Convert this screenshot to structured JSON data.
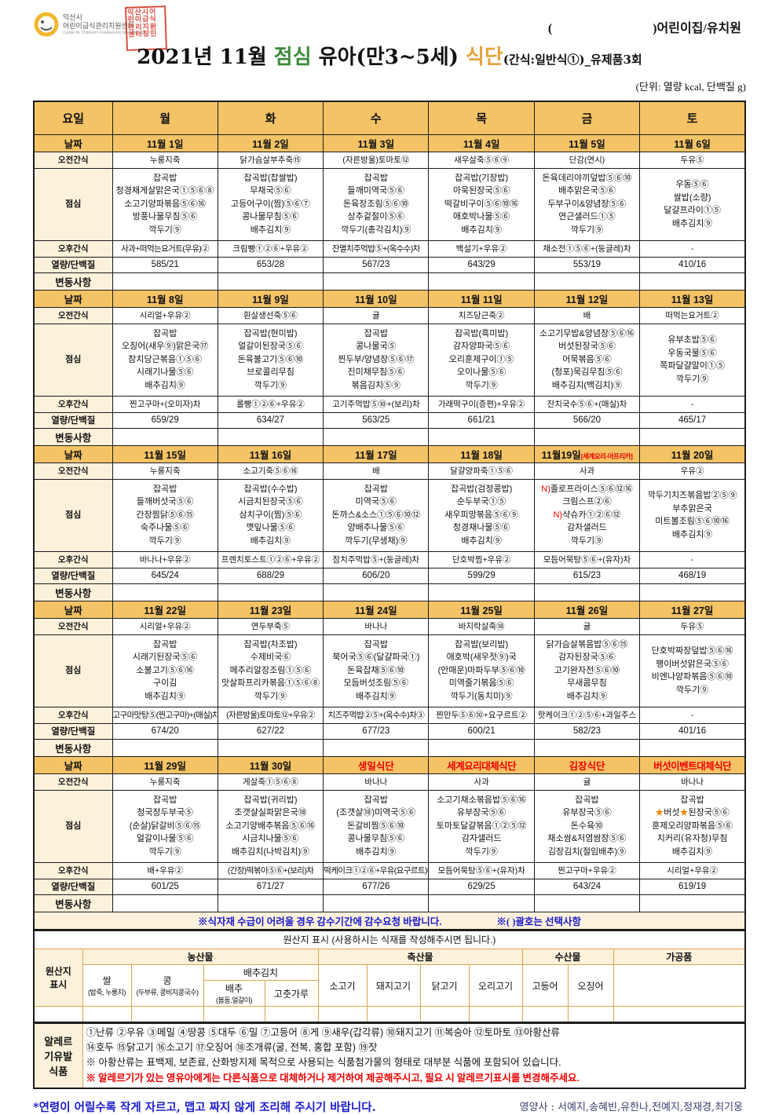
{
  "header": {
    "org_line1": "익산시",
    "org_line2": "어린이급식관리지원센터",
    "org_en": "Center for Children's Foodservice Management",
    "stamp_text": "익산시어린이급식관리지원센터장인",
    "facility_open": "(",
    "facility_close": ")어린이집/유치원",
    "title_prefix": "2021년 11월 ",
    "title_lunch": "점심",
    "title_mid": " 유아(만3~5세) ",
    "title_diet": "식단",
    "title_suffix": "(간식:일반식①)_유제품3회",
    "unit_note": "(단위: 열량 kcal, 단백질 g)"
  },
  "menu": {
    "corner_label": "요일",
    "days": [
      "월",
      "화",
      "수",
      "목",
      "금",
      "토"
    ],
    "row_labels": {
      "date": "날짜",
      "am_snack": "오전간식",
      "lunch": "점심",
      "pm_snack": "오후간식",
      "nutrition": "열량/단백질",
      "changes": "변동사항"
    },
    "note_left": "※식자재 수급이 어려울 경우 감수기간에 감수요청 바랍니다.",
    "note_right": "※( )괄호는 선택사항",
    "weeks": [
      {
        "dates": [
          "11월 1일",
          "11월 2일",
          "11월 3일",
          "11월 4일",
          "11월 5일",
          "11월 6일"
        ],
        "am_snacks": [
          "누룽지죽",
          "닭가슴살부추죽⑮",
          "(자른방울)토마토⑫",
          "새우살죽⑤⑥⑨",
          "단감(연시)",
          "두유⑤"
        ],
        "lunches": [
          [
            "잡곡밥",
            "청경채게살맑은국①⑤⑥⑧",
            "소고기양파볶음⑤⑥⑯",
            "방풍나물무침⑤⑥",
            "깍두기⑨"
          ],
          [
            "잡곡밥(찹쌀밥)",
            "무채국⑤⑥",
            "고등어구이(찜)⑤⑥⑦",
            "콩나물무침⑤⑥",
            "배추김치⑨"
          ],
          [
            "잡곡밥",
            "들깨미역국⑤⑥",
            "돈육장조림⑤⑥⑩",
            "상추겉절이⑤⑥",
            "깍두기(총각김치)⑨"
          ],
          [
            "잡곡밥(기장밥)",
            "아욱된장국⑤⑥",
            "떡갈비구이⑤⑥⑩⑯",
            "애호박나물⑤⑥",
            "배추김치⑨"
          ],
          [
            "돈육데리야끼덮밥⑤⑥⑩",
            "배추맑은국⑤⑥",
            "두부구이&양념장⑤⑥",
            "연근샐러드①⑤",
            "깍두기⑨"
          ],
          [
            "우동⑤⑥",
            "쌀밥(소량)",
            "달걀프라이①⑤",
            "배추김치⑨"
          ]
        ],
        "pm_snacks": [
          "사과+떠먹는요거트(우유)②",
          "크림빵①②⑥+우유②",
          "잔멸치주먹밥⑤+(옥수수)차",
          "백설기+우유②",
          "채소전①⑤⑥+(둥글레)차",
          "-"
        ],
        "nutrition": [
          "585/21",
          "653/28",
          "567/23",
          "643/29",
          "553/19",
          "410/16"
        ]
      },
      {
        "dates": [
          "11월 8일",
          "11월 9일",
          "11월 10일",
          "11월 11일",
          "11월 12일",
          "11월 13일"
        ],
        "am_snacks": [
          "시리얼+우유②",
          "흰살생선죽⑤⑥",
          "귤",
          "치즈당근죽②",
          "배",
          "떠먹는요거트②"
        ],
        "lunches": [
          [
            "잡곡밥",
            "오징어(새우⑨)맑은국⑰",
            "참치당근볶음①⑤⑥",
            "시래기나물⑤⑥",
            "배추김치⑨"
          ],
          [
            "잡곡밥(현미밥)",
            "얼갈이된장국⑤⑥",
            "돈육불고기⑤⑥⑩",
            "브로콜리무침",
            "깍두기⑨"
          ],
          [
            "잡곡밥",
            "콩나물국⑤",
            "찐두부/양념장⑤⑥⑰",
            "진미채무침⑤⑥",
            "볶음김치⑤⑨"
          ],
          [
            "잡곡밥(흑미밥)",
            "감자양파국⑤⑥",
            "오리훈제구이①⑤",
            "오이나물⑤⑥",
            "깍두기⑨"
          ],
          [
            "소고기무밥&양념장⑤⑥⑯",
            "버섯된장국⑤⑥",
            "어묵볶음⑤⑥",
            "(청포)묵김무침⑤⑥",
            "배추김치(백김치)⑨"
          ],
          [
            "유부초밥⑤⑥",
            "우동국물⑤⑥",
            "쪽파달걀말이①⑤",
            "깍두기⑨"
          ]
        ],
        "pm_snacks": [
          "찐고구마+(오미자)차",
          "롤빵①②⑥+우유②",
          "고기주먹밥⑤⑩+(보리)차",
          "가래떡구이(증편)+우유②",
          "잔치국수⑤⑥+(매실)차",
          "-"
        ],
        "nutrition": [
          "659/29",
          "634/27",
          "563/25",
          "661/21",
          "566/20",
          "465/17"
        ]
      },
      {
        "dates": [
          "11월 15일",
          "11월 16일",
          "11월 17일",
          "11월 18일",
          {
            "t": "11월19일",
            "tag": "[세계요리-아프리카]"
          },
          "11월 20일"
        ],
        "am_snacks": [
          "누룽지죽",
          "소고기죽⑤⑥⑯",
          "배",
          "달걀양파죽①⑤⑥",
          "사과",
          "우유②"
        ],
        "lunches": [
          [
            "잡곡밥",
            "들깨버섯국⑤⑥",
            "간장찜닭⑤⑥⑮",
            "숙주나물⑤⑥",
            "깍두기⑨"
          ],
          [
            "잡곡밥(수수밥)",
            "시금치된장국⑤⑥",
            "삼치구이(찜)⑤⑥",
            "깻잎나물⑤⑥",
            "배추김치⑨"
          ],
          [
            "잡곡밥",
            "미역국⑤⑥",
            "돈까스&소스①⑤⑥⑩⑫",
            "양배추나물⑤⑥",
            "깍두기(무생채)⑨"
          ],
          [
            "잡곡밥(검정콩밥)",
            "순두부국①⑤",
            "새우피망볶음⑤⑥⑨",
            "청경채나물⑤⑥",
            "배추김치⑨"
          ],
          [
            [
              [
                "N)",
                "red"
              ],
              [
                "졸로프라이스⑤⑥⑫⑯",
                ""
              ]
            ],
            "크림스프②⑥",
            [
              [
                "N)",
                "red"
              ],
              [
                "샥슈카①②⑥⑫",
                ""
              ]
            ],
            "감자샐러드",
            "깍두기⑨"
          ],
          [
            "깍두기치즈볶음밥②⑤⑨",
            "부추맑은국",
            "미트볼조림⑤⑥⑩⑯",
            "배추김치⑨"
          ]
        ],
        "pm_snacks": [
          "바나나+우유②",
          "프렌치토스트①②⑥+우유②",
          "참치주먹밥⑤+(둥글레)차",
          "단호박찜+우유②",
          "모듬어묵탕⑤⑥+(유자)차",
          "-"
        ],
        "nutrition": [
          "645/24",
          "688/29",
          "606/20",
          "599/29",
          "615/23",
          "468/19"
        ]
      },
      {
        "dates": [
          "11월 22일",
          "11월 23일",
          "11월 24일",
          "11월 25일",
          "11월 26일",
          "11월 27일"
        ],
        "am_snacks": [
          "시리얼+우유②",
          "연두부죽⑤",
          "바나나",
          "바지락살죽⑱",
          "귤",
          "두유⑤"
        ],
        "lunches": [
          [
            "잡곡밥",
            "시래기된장국⑤⑥",
            "소불고기⑤⑥⑯",
            "구이김",
            "배추김치⑨"
          ],
          [
            "잡곡밥(차조밥)",
            "수제비국⑥",
            "메추리알장조림①⑤⑥",
            "맛살파프리카볶음①⑤⑥⑧",
            "깍두기⑨"
          ],
          [
            "잡곡밥",
            "북어국⑤⑥(달걀파국①)",
            "돈육잡채⑤⑥⑩",
            "모듬버섯조림⑤⑥",
            "배추김치⑨"
          ],
          [
            "잡곡밥(보리밥)",
            "애호박(새우젓⑨)국",
            "(안매운)마파두부⑤⑥⑩",
            "미역줄기볶음⑤⑥",
            "깍두기(동치미)⑨"
          ],
          [
            "닭가슴살볶음밥⑤⑥⑮",
            "감자된장국⑤⑥",
            "고기완자전⑤⑥⑩",
            "무새콤무침",
            "배추김치⑨"
          ],
          [
            "단호박짜장덮밥⑤⑥⑯",
            "팽이버섯맑은국⑤⑥",
            "비엔나양파볶음⑤⑥⑩",
            "깍두기⑨"
          ]
        ],
        "pm_snacks": [
          "고구마맛탕⑤(찐고구마)+(매실)차",
          "(자른방울)토마토⑫+우유②",
          "치즈주먹밥②⑤+(옥수수)차③",
          "찐만두⑤⑥⑩+요구르트②",
          "핫케이크①②⑤⑥+과일주스",
          "-"
        ],
        "nutrition": [
          "674/20",
          "627/22",
          "677/23",
          "600/21",
          "582/23",
          "401/16"
        ]
      },
      {
        "dates": [
          "11월 29일",
          "11월 30일",
          {
            "t": "생일식단",
            "red": true
          },
          {
            "t": "세계요리대체식단",
            "red": true
          },
          {
            "t": "김장식단",
            "red": true
          },
          {
            "t": "버섯이벤트대체식단",
            "red": true
          }
        ],
        "am_snacks": [
          "누룽지죽",
          "게살죽①⑤⑥⑧",
          "바나나",
          "사과",
          "귤",
          "바나나"
        ],
        "lunches": [
          [
            "잡곡밥",
            "청국장두부국⑤",
            "(순살)닭갈비⑤⑥⑮",
            "얼갈이나물⑤⑥",
            "깍두기⑨"
          ],
          [
            "잡곡밥(귀리밥)",
            "조갯살실파맑은국⑱",
            "소고기양배추볶음⑤⑥⑯",
            "시금치나물⑤⑥",
            "배추김치(나박김치)⑨"
          ],
          [
            "잡곡밥",
            "(조갯살⑱)미역국⑤⑥",
            "돈갈비찜⑤⑥⑩",
            "콩나물무침⑤⑥",
            "배추김치⑨"
          ],
          [
            "소고기채소볶음밥⑤⑥⑯",
            "유부장국⑤⑥",
            "토마토달걀볶음①②⑤⑫",
            "감자샐러드",
            "깍두기⑨"
          ],
          [
            "잡곡밥",
            "유부장국⑤⑥",
            "돈수육⑩",
            "채소쌈&저염쌈장⑤⑥",
            "김장김치(절임배추)⑨"
          ],
          {
            "serif": true,
            "lines": [
              "잡곡밥",
              [
                [
                  "★",
                  "star"
                ],
                [
                  "버섯",
                  ""
                ],
                [
                  "★",
                  "star"
                ],
                [
                  "된장국⑤⑥",
                  ""
                ]
              ],
              "훈제오리양파볶음⑤⑥",
              "치커리(유자청)무침",
              "배추김치⑨"
            ]
          }
        ],
        "pm_snacks": [
          "배+우유②",
          "(간장)떡볶이⑤⑥+(보리)차",
          "떡케이크①②⑥+우유(요구르트)②",
          "모듬어묵탕⑤⑥+(유자)차",
          "찐고구마+우유②",
          "시리얼+우유②"
        ],
        "nutrition": [
          "601/25",
          "671/27",
          "677/26",
          "629/25",
          "643/24",
          "619/19"
        ]
      }
    ]
  },
  "origin": {
    "title": "원산지 표시 (사용하시는 식재를 작성해주시면 됩니다.)",
    "side_l1": "원산지",
    "side_l2": "표시",
    "cat_agri": "농산물",
    "cat_livestock": "축산물",
    "cat_seafood": "수산물",
    "cat_processed": "가공품",
    "rice": "쌀",
    "rice_sub": "(밥죽, 누룽지)",
    "bean": "콩",
    "bean_sub": "(두부류, 콩비지콩국수)",
    "kimchi": "배추김치",
    "cabbage": "배추",
    "cabbage_sub": "(봄동,얼갈이)",
    "pepper": "고춧가루",
    "beef": "소고기",
    "pork": "돼지고기",
    "chicken": "닭고기",
    "duck": "오리고기",
    "mackerel": "고등어",
    "squid": "오징어"
  },
  "allergy": {
    "side_l1": "알레르",
    "side_l2": "기유발",
    "side_l3": "식품",
    "line1": "①난류 ②우유 ③메밀 ④땅콩 ⑤대두 ⑥밀 ⑦고등어 ⑧게 ⑨새우(갑각류) ⑩돼지고기 ⑪복숭아 ⑫토마토 ⑬아황산류",
    "line2": "⑭호두 ⑮닭고기 ⑯소고기 ⑰오징어 ⑱조개류(굴, 전복, 홍합 포함) ⑲잣",
    "line3": "※ 아황산류는 표백제, 보존료, 산화방지제 목적으로 사용되는 식품첨가물의 형태로 대부분 식품에 포함되어 있습니다.",
    "line4": "※ 알레르기가 있는 영유아에게는 다른식품으로 대체하거나 제거하여 제공해주시고, 필요 시 알레르기표시를 변경해주세요."
  },
  "footer": {
    "left": "*연령이 어릴수록 작게 자르고, 맵고 짜지 않게 조리해 주시기 바랍니다.",
    "right": "영양사 : 서예지,송혜빈,유한나,전예지,정재경,최기웅"
  }
}
